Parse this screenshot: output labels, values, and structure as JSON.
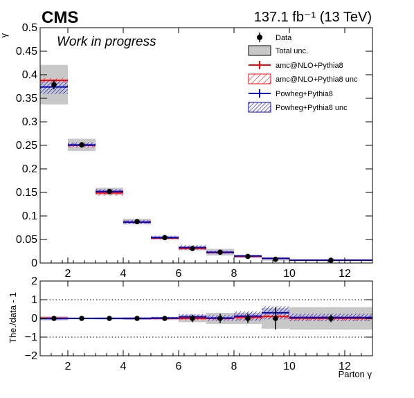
{
  "header": {
    "experiment": "CMS",
    "luminosity": "137.1 fb⁻¹ (13 TeV)",
    "status": "Work in progress"
  },
  "legend": {
    "entries": [
      "Data",
      "Total unc.",
      "amc@NLO+Pythia8",
      "amc@NLO+Pythia8 unc",
      "Powheg+Pythia8",
      "Powheg+Pythia8 unc"
    ]
  },
  "colors": {
    "data": "#000000",
    "total_unc": "#c8c8c8",
    "amc": "#ff0000",
    "powheg": "#0000cc"
  },
  "chart_data": [
    {
      "type": "bar",
      "panel": "main",
      "xlabel": "",
      "ylabel": "γ",
      "xlim": [
        1,
        13
      ],
      "ylim": [
        0,
        0.5
      ],
      "x_ticks": [
        "2",
        "4",
        "6",
        "8",
        "10",
        "12"
      ],
      "y_ticks": [
        "0",
        "0.05",
        "0.1",
        "0.15",
        "0.2",
        "0.25",
        "0.3",
        "0.35",
        "0.4",
        "0.45",
        "0.5"
      ],
      "bin_edges": [
        1,
        2,
        3,
        4,
        5,
        6,
        7,
        8,
        9,
        10,
        13
      ],
      "series": [
        {
          "name": "Data",
          "values": [
            0.379,
            0.251,
            0.152,
            0.088,
            0.054,
            0.031,
            0.023,
            0.014,
            0.008,
            0.006
          ],
          "errors": [
            0.01,
            0.006,
            0.004,
            0.003,
            0.002,
            0.002,
            0.002,
            0.001,
            0.001,
            0.001
          ]
        },
        {
          "name": "Total unc.",
          "values": [
            0.042,
            0.013,
            0.008,
            0.006,
            0.004,
            0.004,
            0.007,
            0.003,
            0.003,
            0.002
          ]
        },
        {
          "name": "amc@NLO+Pythia8",
          "values": [
            0.388,
            0.25,
            0.149,
            0.087,
            0.053,
            0.031,
            0.022,
            0.014,
            0.01,
            0.006
          ]
        },
        {
          "name": "amc@NLO+Pythia8 unc",
          "values": [
            0.005,
            0.005,
            0.006,
            0.004,
            0.003,
            0.003,
            0.002,
            0.002,
            0.001,
            0.001
          ]
        },
        {
          "name": "Powheg+Pythia8",
          "values": [
            0.374,
            0.251,
            0.152,
            0.087,
            0.054,
            0.033,
            0.023,
            0.015,
            0.01,
            0.006
          ]
        },
        {
          "name": "Powheg+Pythia8 unc",
          "values": [
            0.015,
            0.005,
            0.005,
            0.004,
            0.003,
            0.005,
            0.003,
            0.002,
            0.002,
            0.001
          ]
        }
      ]
    },
    {
      "type": "bar",
      "panel": "ratio",
      "xlabel": "Parton γ",
      "ylabel": "The./data - 1",
      "xlim": [
        1,
        13
      ],
      "ylim": [
        -2,
        2
      ],
      "x_ticks": [
        "2",
        "4",
        "6",
        "8",
        "10",
        "12"
      ],
      "y_ticks": [
        "−2",
        "−1",
        "0",
        "1",
        "2"
      ],
      "reference_lines": [
        -1,
        1
      ],
      "bin_edges": [
        1,
        2,
        3,
        4,
        5,
        6,
        7,
        8,
        9,
        10,
        13
      ],
      "series": [
        {
          "name": "Data",
          "values": [
            0,
            0,
            0,
            0,
            0,
            0,
            0,
            0,
            0,
            0
          ],
          "errors": [
            0.03,
            0.02,
            0.03,
            0.04,
            0.05,
            0.2,
            0.25,
            0.25,
            0.6,
            0.2
          ]
        },
        {
          "name": "Total unc.",
          "values": [
            0.11,
            0.05,
            0.06,
            0.07,
            0.08,
            0.2,
            0.3,
            0.3,
            0.55,
            0.6
          ]
        },
        {
          "name": "amc@NLO+Pythia8",
          "values": [
            0.02,
            0,
            0,
            -0.01,
            0,
            0,
            0,
            0.05,
            0.1,
            0
          ]
        },
        {
          "name": "amc@NLO+Pythia8 unc",
          "values": [
            0.02,
            0.02,
            0.04,
            0.05,
            0.06,
            0.1,
            0.1,
            0.15,
            0.15,
            0.15
          ]
        },
        {
          "name": "Powheg+Pythia8",
          "values": [
            -0.01,
            0,
            0,
            0,
            0.02,
            0.08,
            0.02,
            0.12,
            0.3,
            0.05
          ]
        },
        {
          "name": "Powheg+Pythia8 unc",
          "values": [
            0.04,
            0.02,
            0.03,
            0.05,
            0.06,
            0.15,
            0.15,
            0.25,
            0.35,
            0.2
          ]
        }
      ]
    }
  ]
}
